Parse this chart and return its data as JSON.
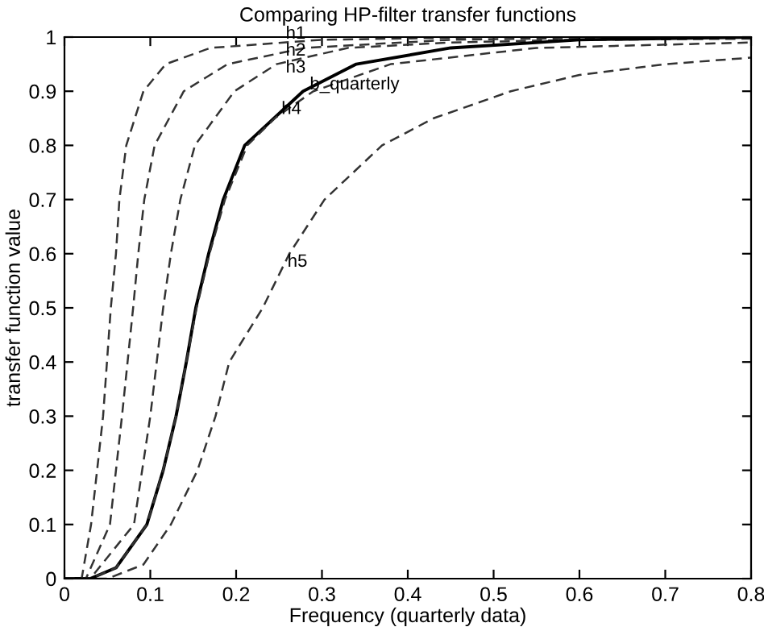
{
  "chart_data": {
    "type": "line",
    "title": "Comparing HP-filter transfer functions",
    "xlabel": "Frequency (quarterly data)",
    "ylabel": "transfer function value",
    "xlim": [
      0,
      0.8
    ],
    "ylim": [
      0,
      1
    ],
    "xticks": [
      0,
      0.1,
      0.2,
      0.3,
      0.4,
      0.5,
      0.6,
      0.7,
      0.8
    ],
    "yticks": [
      0,
      0.1,
      0.2,
      0.3,
      0.4,
      0.5,
      0.6,
      0.7,
      0.8,
      0.9,
      1
    ],
    "grid": false,
    "legend": false,
    "series": [
      {
        "color": "#333333",
        "line_style": "dashed",
        "x": [
          0,
          0.02,
          0.031,
          0.045,
          0.054,
          0.06,
          0.064,
          0.072,
          0.092,
          0.118,
          0.17,
          0.3,
          0.5,
          0.8
        ],
        "values": [
          0,
          0,
          0.1,
          0.3,
          0.5,
          0.6,
          0.7,
          0.8,
          0.9,
          0.95,
          0.98,
          0.995,
          1,
          1
        ]
      },
      {
        "color": "#333333",
        "line_style": "dashed",
        "x": [
          0,
          0.025,
          0.053,
          0.067,
          0.08,
          0.086,
          0.093,
          0.105,
          0.139,
          0.19,
          0.28,
          0.45,
          0.7,
          0.8
        ],
        "values": [
          0,
          0,
          0.1,
          0.3,
          0.5,
          0.6,
          0.7,
          0.8,
          0.9,
          0.95,
          0.98,
          0.995,
          1,
          1
        ]
      },
      {
        "color": "#333333",
        "line_style": "dashed",
        "x": [
          0,
          0.03,
          0.081,
          0.1,
          0.115,
          0.124,
          0.135,
          0.152,
          0.198,
          0.247,
          0.33,
          0.45,
          0.6,
          0.8
        ],
        "values": [
          0,
          0,
          0.1,
          0.3,
          0.5,
          0.6,
          0.7,
          0.8,
          0.9,
          0.95,
          0.98,
          0.99,
          0.995,
          0.997
        ]
      },
      {
        "color": "#000000",
        "line_style": "solid",
        "x": [
          0,
          0.03,
          0.06,
          0.096,
          0.115,
          0.13,
          0.142,
          0.153,
          0.168,
          0.185,
          0.21,
          0.278,
          0.34,
          0.45,
          0.6,
          0.8
        ],
        "values": [
          0,
          0,
          0.02,
          0.1,
          0.2,
          0.3,
          0.4,
          0.5,
          0.6,
          0.7,
          0.8,
          0.9,
          0.95,
          0.98,
          0.995,
          1
        ]
      },
      {
        "color": "#333333",
        "line_style": "dashed",
        "x": [
          0,
          0.03,
          0.06,
          0.096,
          0.115,
          0.13,
          0.142,
          0.154,
          0.169,
          0.187,
          0.213,
          0.245,
          0.29,
          0.38,
          0.55,
          0.8
        ],
        "values": [
          0,
          0,
          0.02,
          0.1,
          0.2,
          0.3,
          0.4,
          0.5,
          0.6,
          0.7,
          0.8,
          0.85,
          0.9,
          0.95,
          0.98,
          0.99
        ]
      },
      {
        "color": "#333333",
        "line_style": "dashed",
        "x": [
          0,
          0.05,
          0.092,
          0.124,
          0.155,
          0.176,
          0.192,
          0.231,
          0.262,
          0.303,
          0.37,
          0.43,
          0.52,
          0.6,
          0.7,
          0.8
        ],
        "values": [
          0,
          0,
          0.026,
          0.1,
          0.2,
          0.3,
          0.4,
          0.5,
          0.6,
          0.7,
          0.8,
          0.85,
          0.9,
          0.93,
          0.95,
          0.962
        ]
      }
    ],
    "annotations": [
      {
        "text": "h1",
        "x": 0.25,
        "y": 0.989
      },
      {
        "text": "h2",
        "x": 0.25,
        "y": 0.97
      },
      {
        "text": "h3",
        "x": 0.25,
        "y": 0.95
      },
      {
        "text": "b_quarterly",
        "x": 0.278,
        "y": 0.9
      },
      {
        "text": "h4",
        "x": 0.245,
        "y": 0.85
      },
      {
        "text": "h5",
        "x": 0.252,
        "y": 0.568
      }
    ]
  }
}
